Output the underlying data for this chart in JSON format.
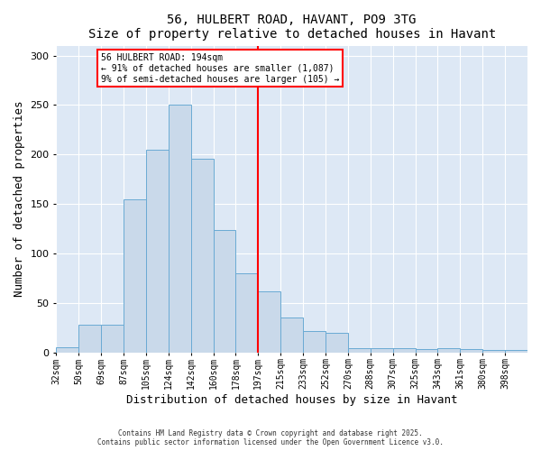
{
  "title": "56, HULBERT ROAD, HAVANT, PO9 3TG",
  "subtitle": "Size of property relative to detached houses in Havant",
  "xlabel": "Distribution of detached houses by size in Havant",
  "ylabel": "Number of detached properties",
  "bin_labels": [
    "32sqm",
    "50sqm",
    "69sqm",
    "87sqm",
    "105sqm",
    "124sqm",
    "142sqm",
    "160sqm",
    "178sqm",
    "197sqm",
    "215sqm",
    "233sqm",
    "252sqm",
    "270sqm",
    "288sqm",
    "307sqm",
    "325sqm",
    "343sqm",
    "361sqm",
    "380sqm",
    "398sqm"
  ],
  "bar_heights": [
    5,
    28,
    28,
    155,
    205,
    250,
    196,
    124,
    80,
    62,
    35,
    22,
    20,
    4,
    4,
    4,
    3,
    4,
    3,
    2,
    2
  ],
  "bar_color": "#c9d9ea",
  "bar_edge_color": "#6aaad4",
  "red_line_index": 9.0,
  "annotation_title": "56 HULBERT ROAD: 194sqm",
  "annotation_line1": "← 91% of detached houses are smaller (1,087)",
  "annotation_line2": "9% of semi-detached houses are larger (105) →",
  "ylim": [
    0,
    310
  ],
  "yticks": [
    0,
    50,
    100,
    150,
    200,
    250,
    300
  ],
  "background_color": "#dde8f5",
  "footer_line1": "Contains HM Land Registry data © Crown copyright and database right 2025.",
  "footer_line2": "Contains public sector information licensed under the Open Government Licence v3.0."
}
